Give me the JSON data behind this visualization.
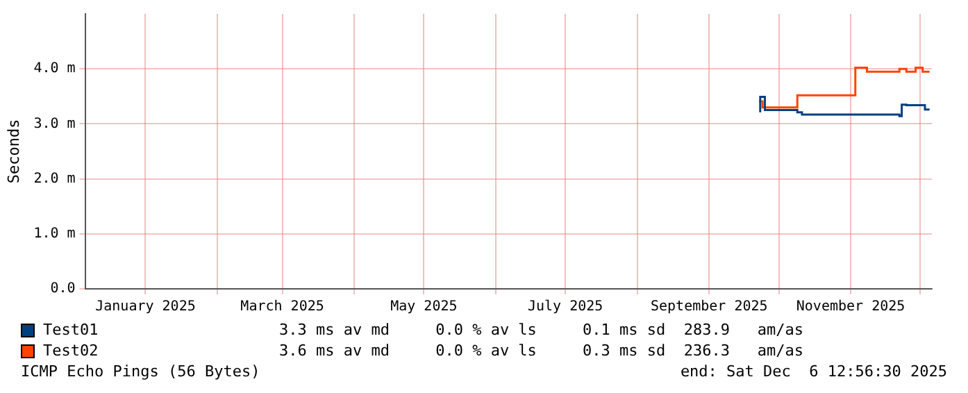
{
  "chart_data": {
    "type": "step",
    "ylabel": "Seconds",
    "xlim": [
      "2024-12-06",
      "2025-12-06"
    ],
    "xticks": [
      {
        "value": "2025-01-01",
        "label": "January 2025"
      },
      {
        "value": "2025-02-01",
        "label": null
      },
      {
        "value": "2025-03-01",
        "label": "March 2025"
      },
      {
        "value": "2025-04-01",
        "label": null
      },
      {
        "value": "2025-05-01",
        "label": "May 2025"
      },
      {
        "value": "2025-06-01",
        "label": null
      },
      {
        "value": "2025-07-01",
        "label": "July 2025"
      },
      {
        "value": "2025-08-01",
        "label": null
      },
      {
        "value": "2025-09-01",
        "label": "September 2025"
      },
      {
        "value": "2025-10-01",
        "label": null
      },
      {
        "value": "2025-11-01",
        "label": "November 2025"
      },
      {
        "value": "2025-12-01",
        "label": null
      }
    ],
    "ylim": [
      0,
      5
    ],
    "yticks": [
      {
        "value": 0,
        "label": "0.0"
      },
      {
        "value": 1,
        "label": "1.0 m"
      },
      {
        "value": 2,
        "label": "2.0 m"
      },
      {
        "value": 3,
        "label": "3.0 m"
      },
      {
        "value": 4,
        "label": "4.0 m"
      }
    ],
    "grid": true,
    "legend": "bottom",
    "series": [
      {
        "name": "Test01",
        "color": "#004080",
        "x": [
          "2025-09-23",
          "2025-09-25",
          "2025-10-09",
          "2025-10-11",
          "2025-11-22",
          "2025-11-23",
          "2025-11-25",
          "2025-12-03",
          "2025-12-04",
          "2025-12-05"
        ],
        "values": [
          3.21,
          3.49,
          3.25,
          3.21,
          3.17,
          3.14,
          3.35,
          3.34,
          3.26,
          3.26
        ]
      },
      {
        "name": "Test02",
        "color": "#ff4400",
        "x": [
          "2025-09-23",
          "2025-09-24",
          "2025-10-09",
          "2025-11-03",
          "2025-11-08",
          "2025-11-22",
          "2025-11-25",
          "2025-11-29",
          "2025-12-02",
          "2025-12-03",
          "2025-12-05"
        ],
        "values": [
          3.39,
          3.41,
          3.3,
          3.52,
          4.02,
          3.95,
          4.0,
          3.95,
          4.02,
          3.95,
          3.95
        ]
      }
    ],
    "annotations": [
      "3.3 ms av md     0.0 % av ls     0.1 ms sd  283.9   am/as",
      "3.6 ms av md     0.0 % av ls     0.3 ms sd  236.3   am/as",
      "ICMP Echo Pings (56 Bytes)",
      "end: Sat Dec  6 12:56:30 2025"
    ]
  }
}
